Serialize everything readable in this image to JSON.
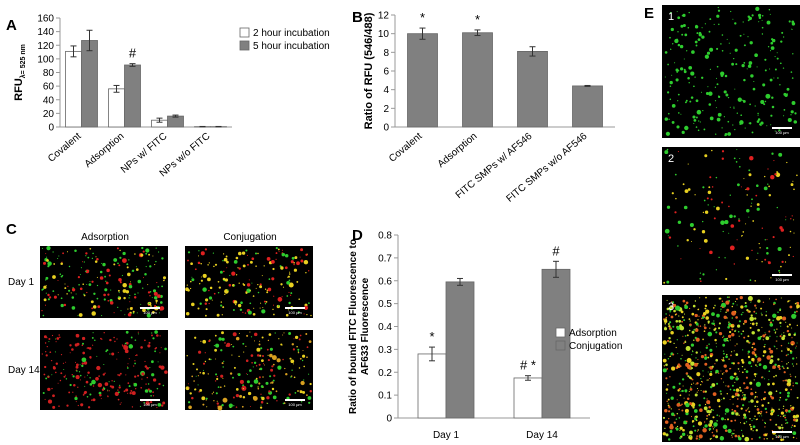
{
  "chart_data": [
    {
      "type": "bar",
      "panel_label": "A",
      "y_label": "RFU",
      "y_label_sub": "λ= 525 nm",
      "categories": [
        "Covalent",
        "Adsorption",
        "NPs w/ FITC",
        "NPs w/o FITC"
      ],
      "series": [
        {
          "name": "2 hour incubation",
          "color": "#ffffff",
          "values": [
            111,
            56,
            10,
            0.5
          ],
          "errors": [
            8,
            5,
            3,
            0.3
          ],
          "annotations": [
            null,
            null,
            null,
            null
          ]
        },
        {
          "name": "5 hour incubation",
          "color": "#808080",
          "values": [
            127,
            91,
            16,
            0.5
          ],
          "errors": [
            15,
            2,
            1.5,
            0.3
          ],
          "annotations": [
            null,
            "#",
            null,
            null
          ]
        }
      ],
      "ylim": [
        0,
        160
      ],
      "yticks": [
        0,
        20,
        40,
        60,
        80,
        100,
        120,
        140,
        160
      ],
      "legend": "upper right"
    },
    {
      "type": "bar",
      "panel_label": "B",
      "y_label": "Ratio of RFU (546/488)",
      "categories": [
        "Covalent",
        "Adsorption",
        "FITC SMPs w/ AF546",
        "FITC SMPs w/o AF546"
      ],
      "values": [
        10,
        10.1,
        8.1,
        4.4
      ],
      "errors": [
        0.6,
        0.3,
        0.5,
        0.05
      ],
      "annotations": [
        "*",
        "*",
        null,
        null
      ],
      "color": "#808080",
      "ylim": [
        0,
        12
      ],
      "yticks": [
        0,
        2,
        4,
        6,
        8,
        10,
        12
      ]
    },
    {
      "type": "bar",
      "panel_label": "D",
      "y_label_lines": [
        "Ratio of bound FITC Fluorescence to",
        "AF633 Fluorescence"
      ],
      "categories": [
        "Day 1",
        "Day 14"
      ],
      "series": [
        {
          "name": "Adsorption",
          "color": "#ffffff",
          "values": [
            0.28,
            0.175
          ],
          "errors": [
            0.03,
            0.01
          ],
          "annotations": [
            "*",
            "# *"
          ]
        },
        {
          "name": "Conjugation",
          "color": "#808080",
          "values": [
            0.595,
            0.65
          ],
          "errors": [
            0.015,
            0.035
          ],
          "annotations": [
            null,
            "#"
          ]
        }
      ],
      "ylim": [
        0,
        0.8
      ],
      "yticks": [
        0,
        0.1,
        0.2,
        0.3,
        0.4,
        0.5,
        0.6,
        0.7,
        0.8
      ],
      "legend": "right"
    }
  ],
  "micrographs_c": {
    "panel_label": "C",
    "column_labels": [
      "Adsorption",
      "Conjugation"
    ],
    "row_labels": [
      "Day 1",
      "Day 14"
    ],
    "scale_bar": "100 µm"
  },
  "micrographs_e": {
    "panel_label": "E",
    "image_labels": [
      "1",
      "2",
      "3"
    ],
    "scale_bar": "100 µm"
  }
}
